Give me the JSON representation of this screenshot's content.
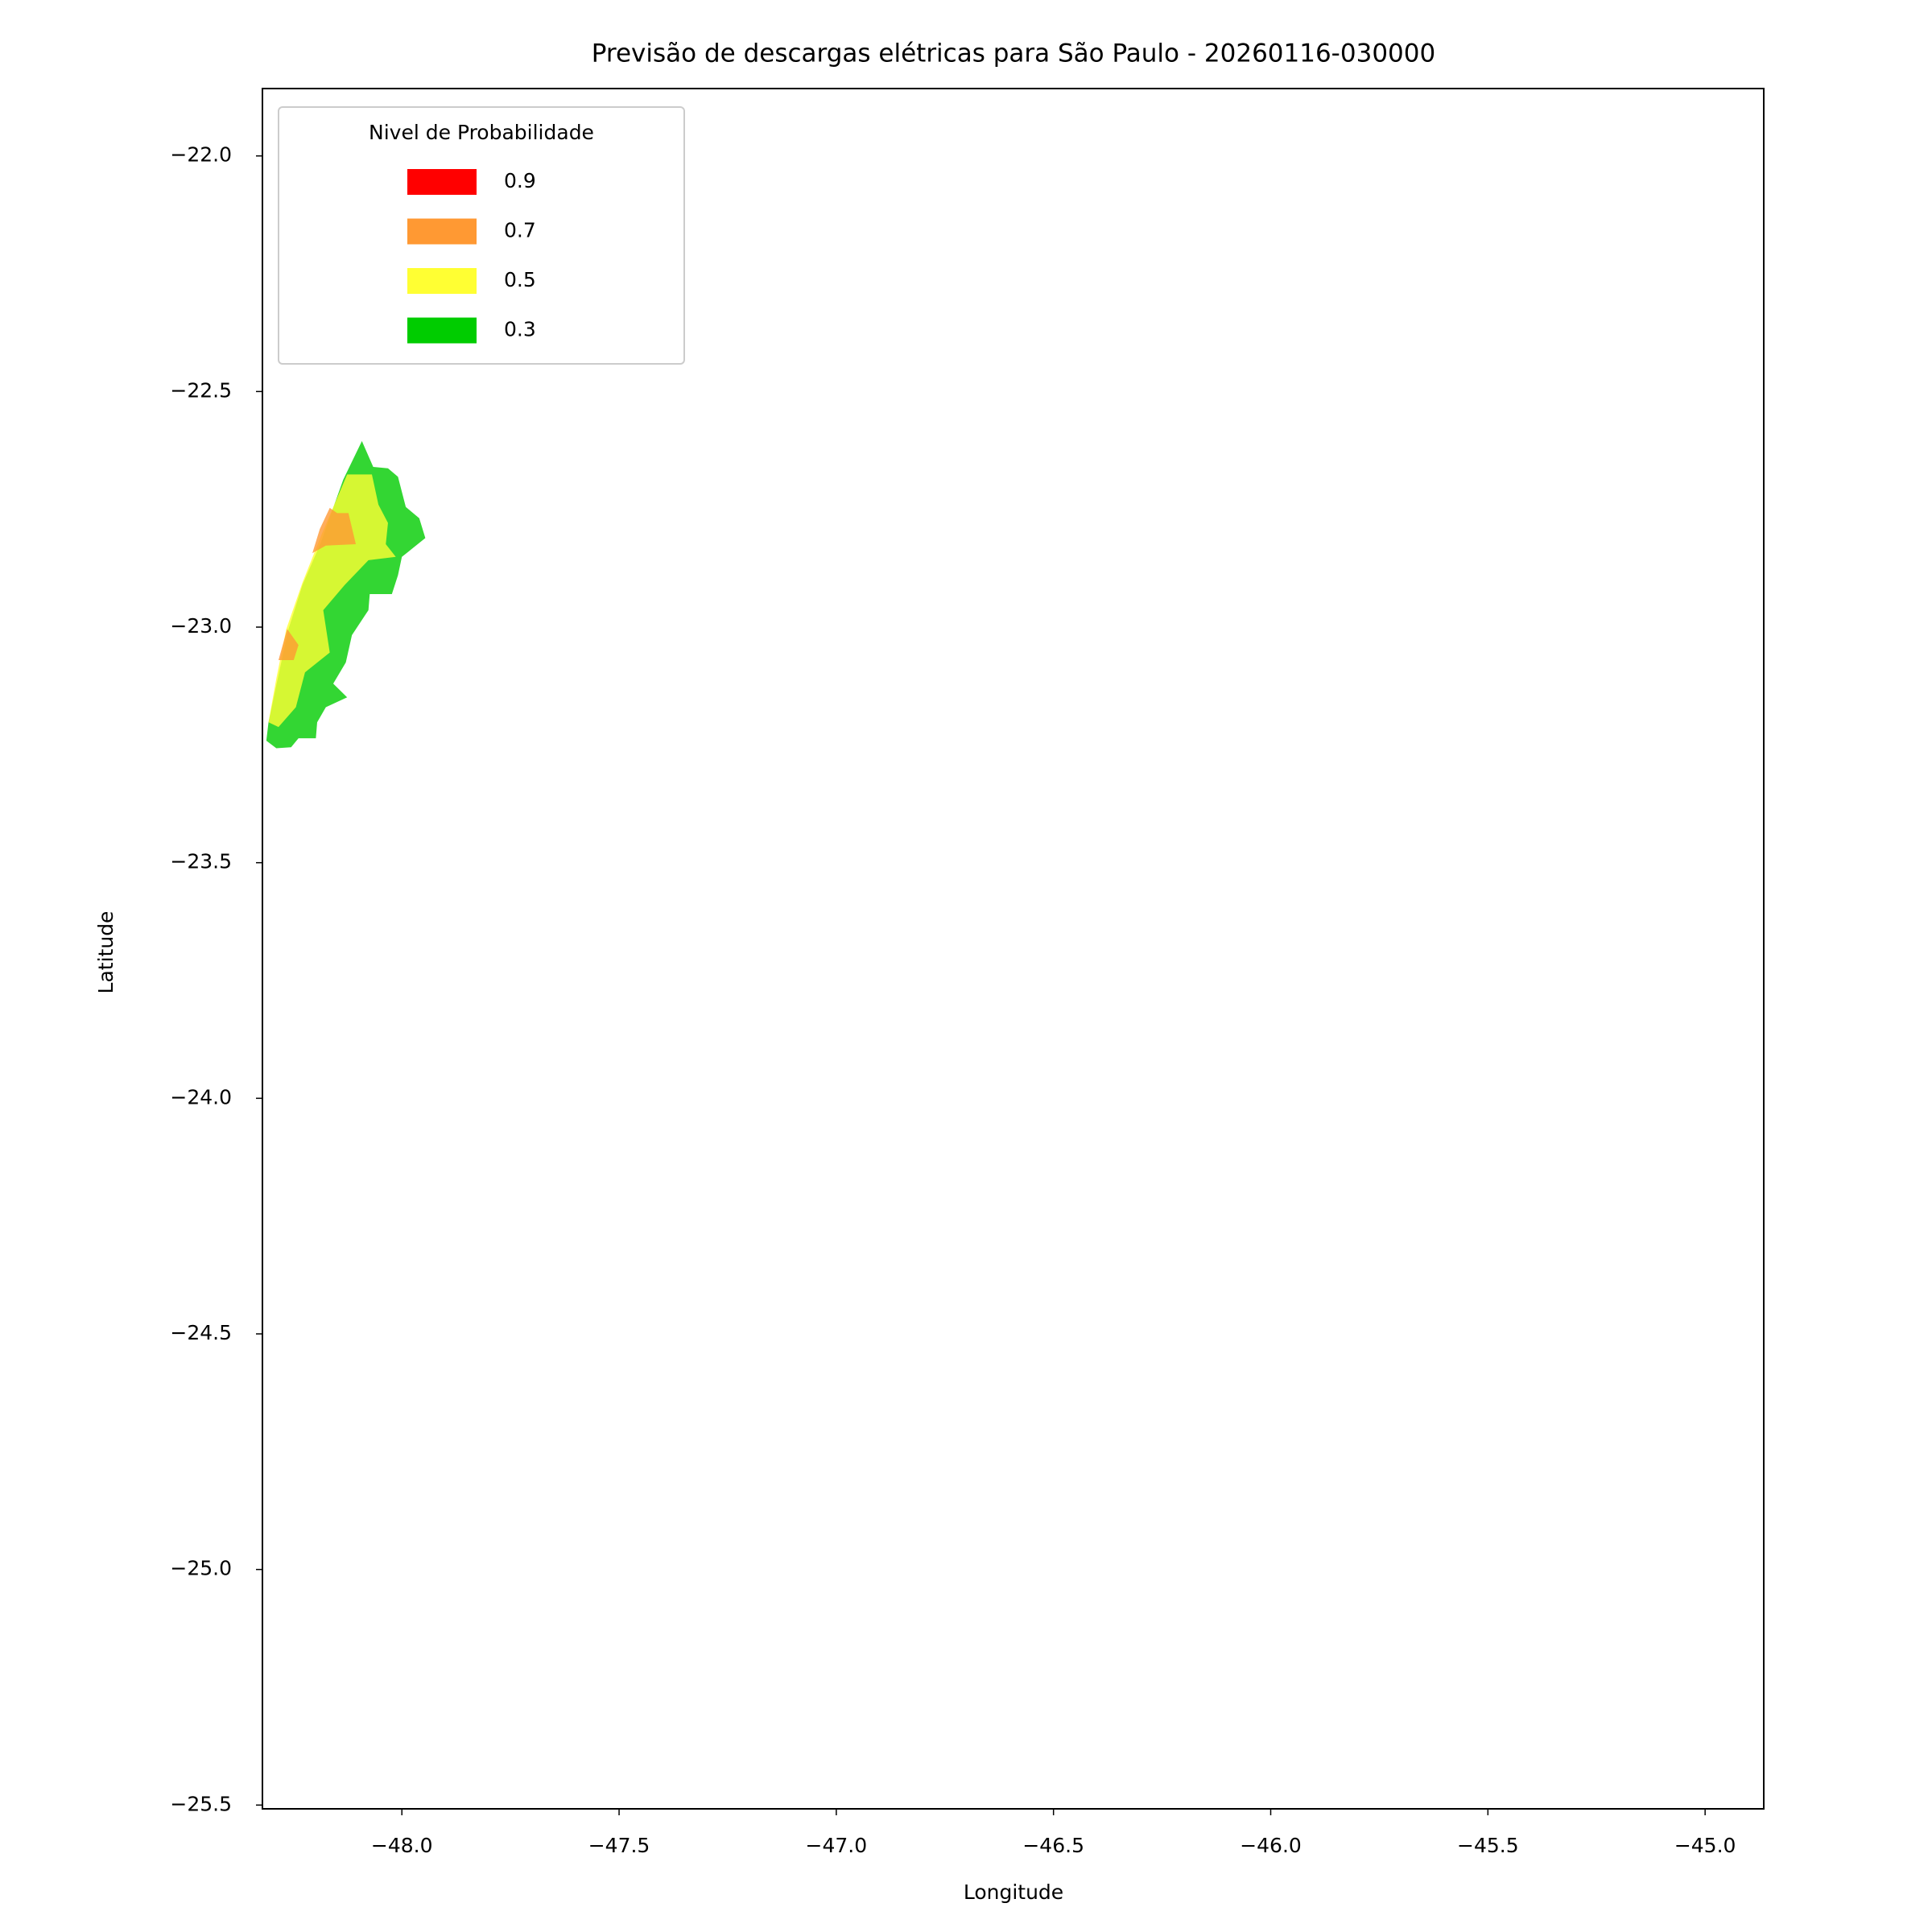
{
  "chart_data": {
    "type": "contour",
    "title": "Previsão de descargas elétricas para São Paulo - 20260116-030000",
    "x_label": "Longitude",
    "y_label": "Latitude",
    "legend_title": "Nivel de Probabilidade",
    "legend": "upper left",
    "xlim": [
      -48.321,
      -44.865
    ],
    "ylim": [
      -25.508,
      -21.857
    ],
    "xticks": [
      {
        "value": -48.0,
        "label": "−48.0"
      },
      {
        "value": -47.5,
        "label": "−47.5"
      },
      {
        "value": -47.0,
        "label": "−47.0"
      },
      {
        "value": -46.5,
        "label": "−46.5"
      },
      {
        "value": -46.0,
        "label": "−46.0"
      },
      {
        "value": -45.5,
        "label": "−45.5"
      },
      {
        "value": -45.0,
        "label": "−45.0"
      }
    ],
    "yticks": [
      {
        "value": -22.0,
        "label": "−22.0"
      },
      {
        "value": -22.5,
        "label": "−22.5"
      },
      {
        "value": -23.0,
        "label": "−23.0"
      },
      {
        "value": -23.5,
        "label": "−23.5"
      },
      {
        "value": -24.0,
        "label": "−24.0"
      },
      {
        "value": -24.5,
        "label": "−24.5"
      },
      {
        "value": -25.0,
        "label": "−25.0"
      },
      {
        "value": -25.5,
        "label": "−25.5"
      }
    ],
    "opacity": 0.8,
    "series": [
      {
        "name": "0.9",
        "color": "#ff0000",
        "polygons": []
      },
      {
        "name": "0.7",
        "color": "#ff9933",
        "polygons": [
          {
            "x": [
              -48.166,
              -48.149,
              -48.123,
              -48.106,
              -48.175,
              -48.206,
              -48.189
            ],
            "y": [
              -22.747,
              -22.758,
              -22.758,
              -22.824,
              -22.827,
              -22.843,
              -22.792
            ]
          },
          {
            "x": [
              -48.264,
              -48.238,
              -48.249,
              -48.284
            ],
            "y": [
              -23.004,
              -23.038,
              -23.07,
              -23.07
            ]
          }
        ]
      },
      {
        "name": "0.5",
        "color": "#ffff33",
        "polygons": [
          {
            "x": [
              -48.126,
              -48.069,
              -48.054,
              -48.032,
              -48.037,
              -48.014,
              -48.077,
              -48.132,
              -48.181,
              -48.166,
              -48.223,
              -48.244,
              -48.284,
              -48.307,
              -48.289,
              -48.266,
              -48.229,
              -48.186
            ],
            "y": [
              -22.676,
              -22.676,
              -22.74,
              -22.779,
              -22.824,
              -22.851,
              -22.858,
              -22.911,
              -22.964,
              -23.054,
              -23.096,
              -23.17,
              -23.212,
              -23.202,
              -23.109,
              -23.004,
              -22.906,
              -22.806
            ]
          }
        ]
      },
      {
        "name": "0.3",
        "color": "#00cc00",
        "polygons": [
          {
            "x": [
              -48.092,
              -48.066,
              -48.032,
              -48.009,
              -47.991,
              -47.96,
              -47.946,
              -48.0,
              -48.009,
              -48.023,
              -48.074,
              -48.077,
              -48.115,
              -48.129,
              -48.158,
              -48.126,
              -48.175,
              -48.195,
              -48.198,
              -48.238,
              -48.255,
              -48.289,
              -48.312,
              -48.307,
              -48.289,
              -48.261,
              -48.229,
              -48.186,
              -48.135
            ],
            "y": [
              -22.605,
              -22.66,
              -22.663,
              -22.681,
              -22.745,
              -22.769,
              -22.811,
              -22.851,
              -22.89,
              -22.93,
              -22.93,
              -22.964,
              -23.017,
              -23.075,
              -23.12,
              -23.149,
              -23.17,
              -23.202,
              -23.236,
              -23.236,
              -23.255,
              -23.257,
              -23.241,
              -23.202,
              -23.123,
              -23.004,
              -22.911,
              -22.819,
              -22.687
            ]
          }
        ]
      }
    ]
  }
}
